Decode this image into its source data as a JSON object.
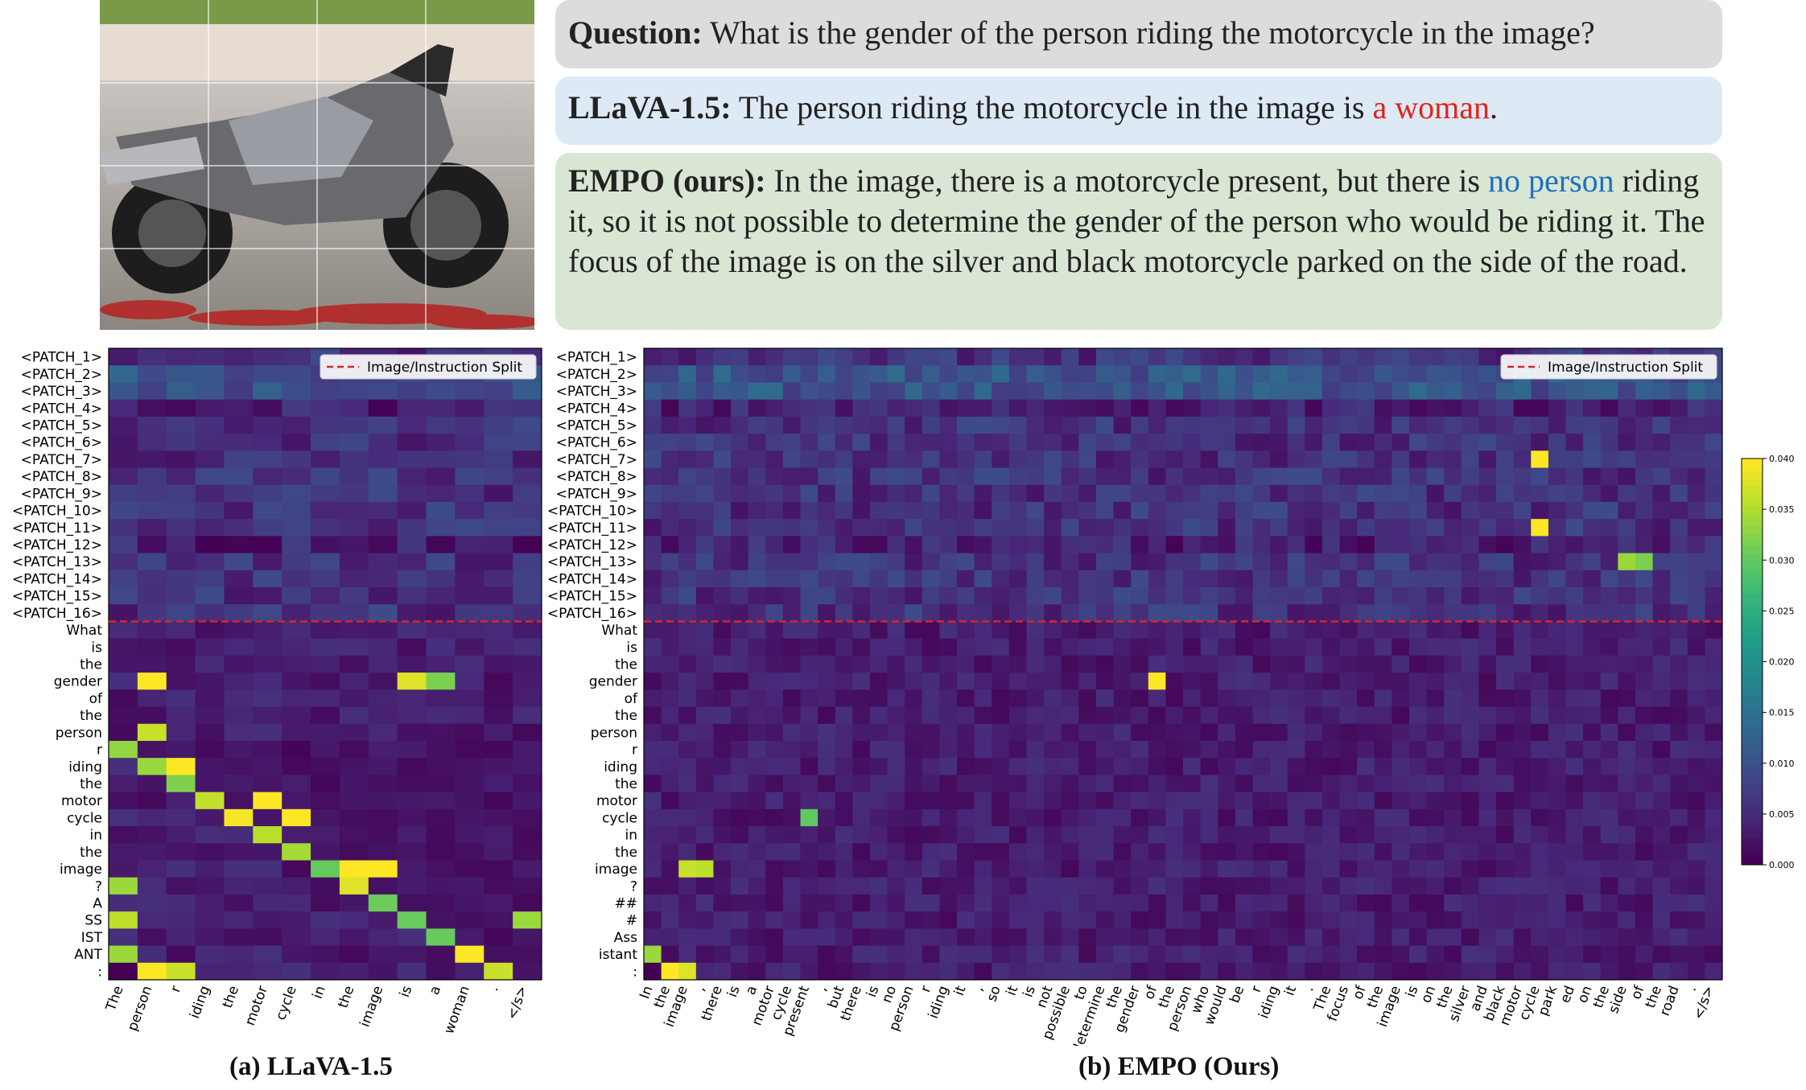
{
  "question_box": {
    "label": "Question:",
    "text": " What is the gender of the person riding the motorcycle in the image?"
  },
  "llava_box": {
    "label": "LLaVA-1.5:",
    "text_before": " The person riding the motorcycle in the image is ",
    "highlight": "a woman",
    "text_after": "."
  },
  "empo_box": {
    "label": "EMPO (ours):",
    "text_before": " In the image, there is a motorcycle present, but there is ",
    "highlight": "no person",
    "text_after": " riding it, so it is not possible to determine the gender of the person who would be riding it. The focus of the image is on the silver and black motorcycle parked on the side of the road."
  },
  "colors": {
    "highlight_red": "#e2231a",
    "highlight_blue": "#1f6fc1",
    "split_line": "#d62728"
  },
  "captions": {
    "a": "(a) LLaVA-1.5",
    "b": "(b) EMPO (Ours)"
  },
  "legend_label": "Image/Instruction Split",
  "chart_data": [
    {
      "type": "heatmap",
      "title": "(a) LLaVA-1.5",
      "colormap": "viridis",
      "y_labels": [
        "<PATCH_1>",
        "<PATCH_2>",
        "<PATCH_3>",
        "<PATCH_4>",
        "<PATCH_5>",
        "<PATCH_6>",
        "<PATCH_7>",
        "<PATCH_8>",
        "<PATCH_9>",
        "<PATCH_10>",
        "<PATCH_11>",
        "<PATCH_12>",
        "<PATCH_13>",
        "<PATCH_14>",
        "<PATCH_15>",
        "<PATCH_16>",
        "What",
        "is",
        "the",
        "gender",
        "of",
        "the",
        "person",
        "r",
        "iding",
        "the",
        "motor",
        "cycle",
        "in",
        "the",
        "image",
        "?",
        "A",
        "SS",
        "IST",
        "ANT",
        ":"
      ],
      "x_labels": [
        "The",
        "person",
        "r",
        "iding",
        "the",
        "motor",
        "cycle",
        "in",
        "the",
        "image",
        "is",
        "a",
        "woman",
        ".",
        "</s>"
      ],
      "split_after_row": 16,
      "legend": "Image/Instruction Split",
      "vmin": 0.0,
      "vmax": 0.04
    },
    {
      "type": "heatmap",
      "title": "(b) EMPO (Ours)",
      "colormap": "viridis",
      "y_labels": [
        "<PATCH_1>",
        "<PATCH_2>",
        "<PATCH_3>",
        "<PATCH_4>",
        "<PATCH_5>",
        "<PATCH_6>",
        "<PATCH_7>",
        "<PATCH_8>",
        "<PATCH_9>",
        "<PATCH_10>",
        "<PATCH_11>",
        "<PATCH_12>",
        "<PATCH_13>",
        "<PATCH_14>",
        "<PATCH_15>",
        "<PATCH_16>",
        "What",
        "is",
        "the",
        "gender",
        "of",
        "the",
        "person",
        "r",
        "iding",
        "the",
        "motor",
        "cycle",
        "in",
        "the",
        "image",
        "?",
        "##",
        "#",
        "Ass",
        "istant",
        ":"
      ],
      "x_labels": [
        "In",
        "the",
        "image",
        ",",
        "there",
        "is",
        "a",
        "motor",
        "cycle",
        "present",
        ",",
        "but",
        "there",
        "is",
        "no",
        "person",
        "r",
        "iding",
        "it",
        ",",
        "so",
        "it",
        "is",
        "not",
        "possible",
        "to",
        "determine",
        "the",
        "gender",
        "of",
        "the",
        "person",
        "who",
        "would",
        "be",
        "r",
        "iding",
        "it",
        ".",
        "The",
        "focus",
        "of",
        "the",
        "image",
        "is",
        "on",
        "the",
        "silver",
        "and",
        "black",
        "motor",
        "cycle",
        "park",
        "ed",
        "on",
        "the",
        "side",
        "of",
        "the",
        "road",
        ".",
        "</s>"
      ],
      "split_after_row": 16,
      "legend": "Image/Instruction Split",
      "vmin": 0.0,
      "vmax": 0.04
    }
  ],
  "colorbar": {
    "ticks": [
      "0.000",
      "0.005",
      "0.010",
      "0.015",
      "0.020",
      "0.025",
      "0.030",
      "0.035",
      "0.040"
    ],
    "min": 0.0,
    "max": 0.04
  }
}
